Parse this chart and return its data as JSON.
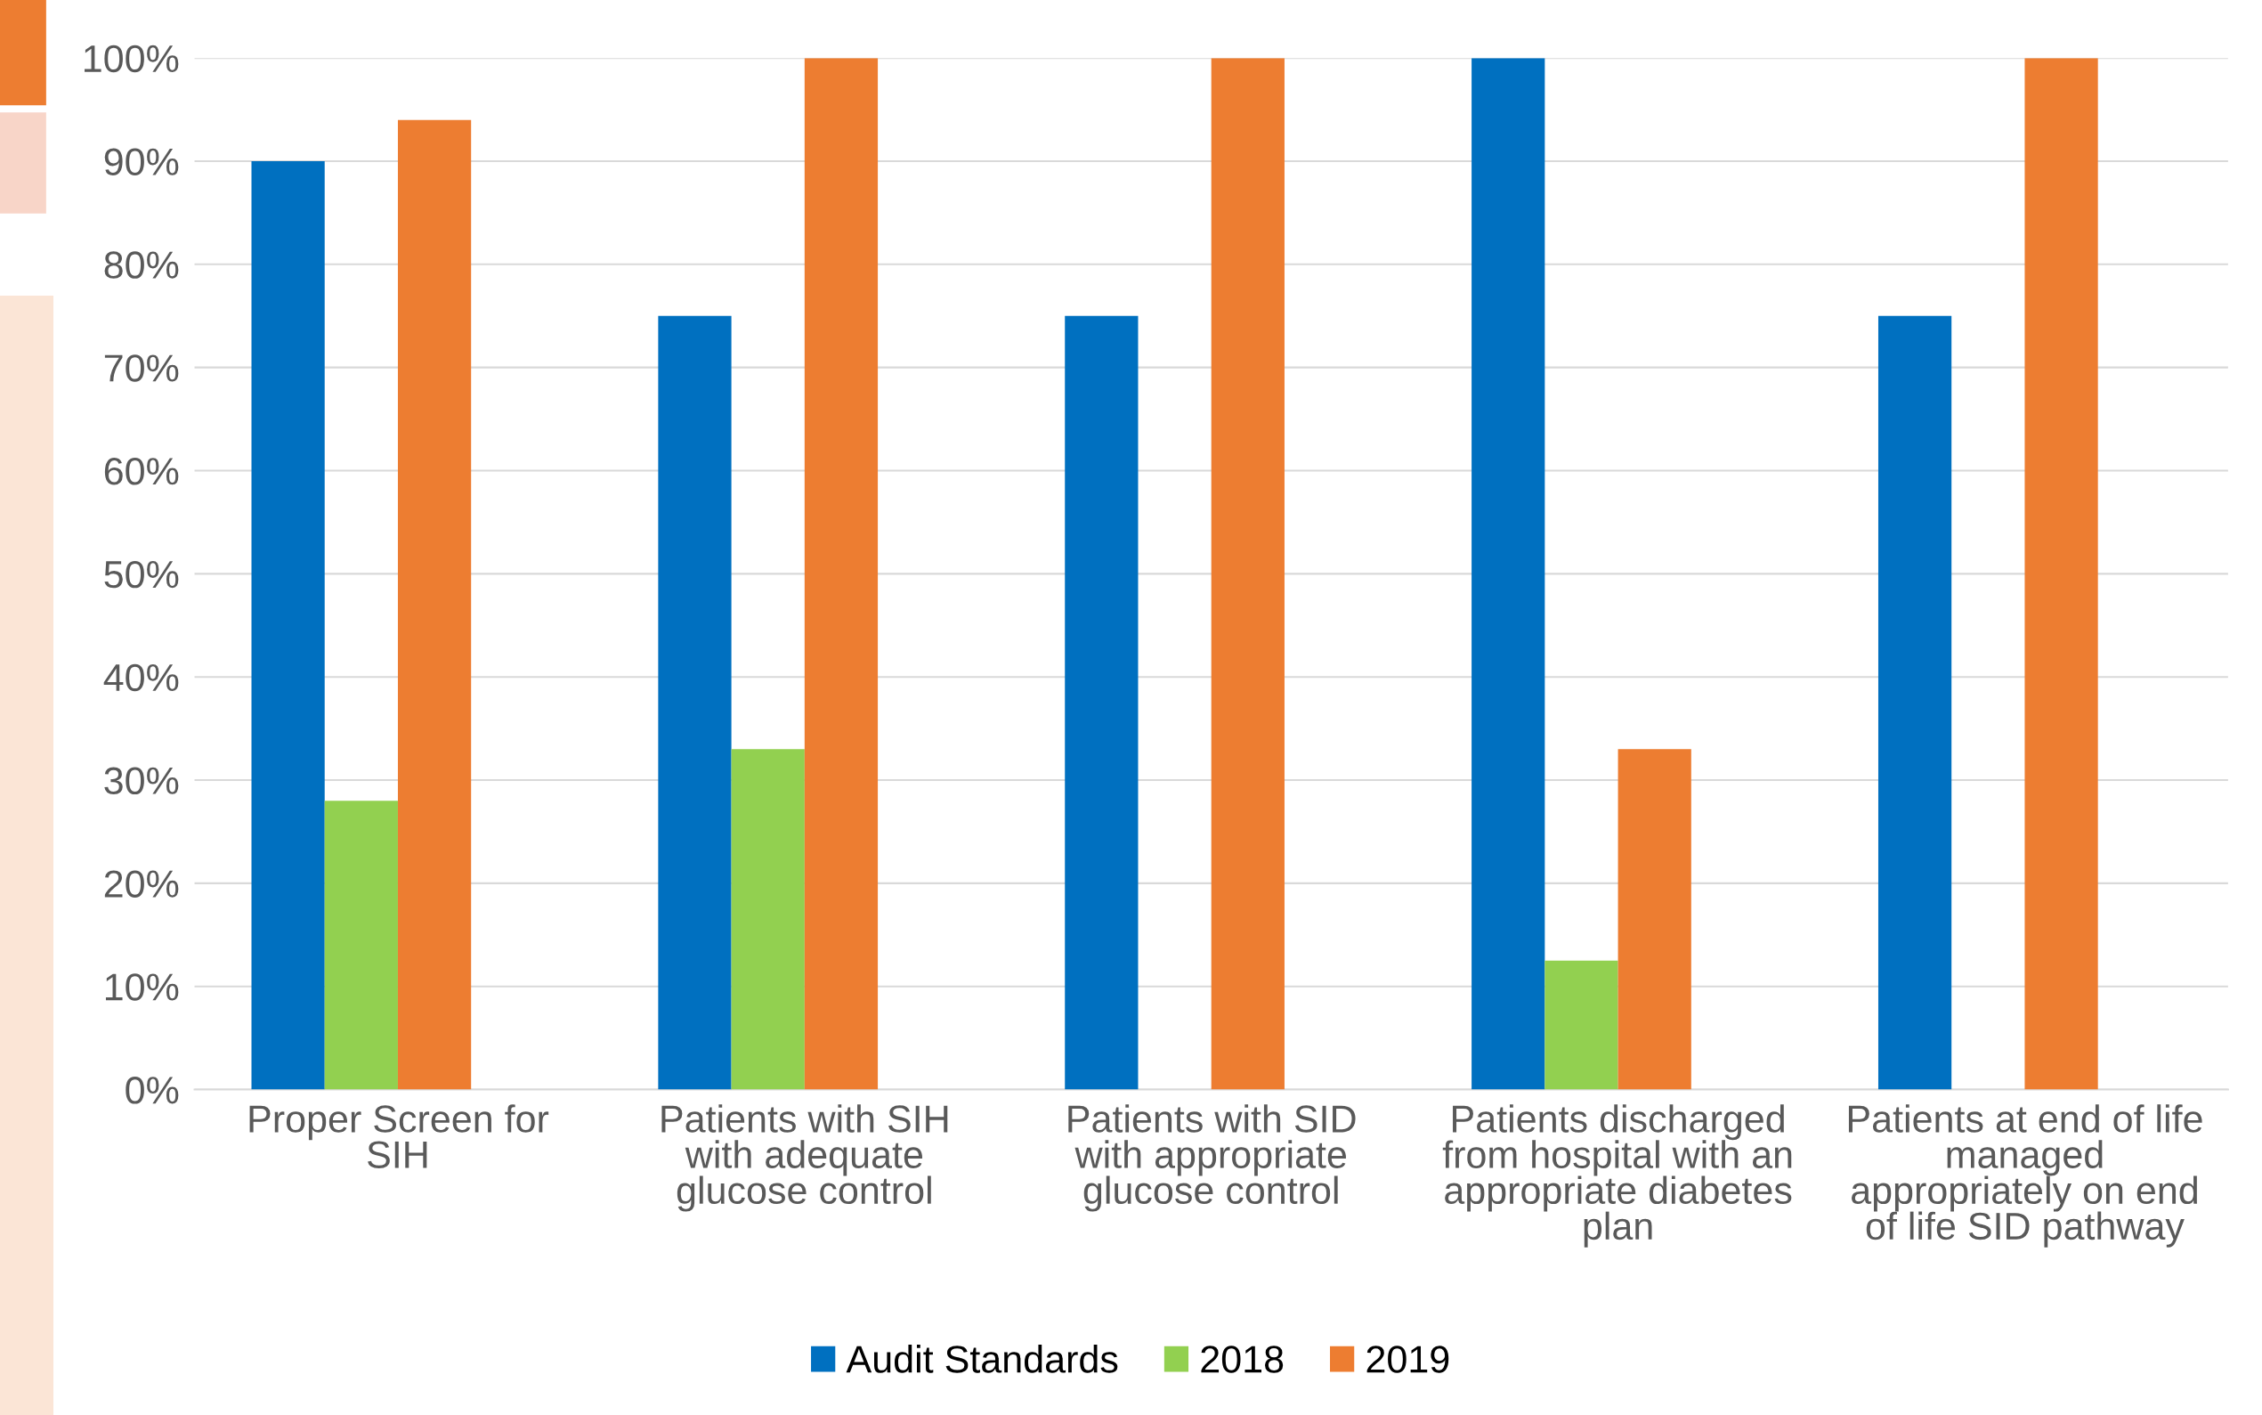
{
  "chart_data": {
    "type": "bar",
    "categories": [
      "Proper Screen for\nSIH",
      "Patients with SIH\nwith adequate\nglucose control",
      "Patients with SID\nwith appropriate\nglucose control",
      "Patients discharged\nfrom hospital with an\nappropriate diabetes\nplan",
      "Patients at end of life\nmanaged\nappropriately on end\nof life SID pathway"
    ],
    "series": [
      {
        "name": "Audit Standards",
        "color": "#0070c0",
        "values": [
          90,
          75,
          75,
          100,
          75
        ]
      },
      {
        "name": "2018",
        "color": "#92d050",
        "values": [
          28,
          33,
          null,
          12.5,
          null
        ]
      },
      {
        "name": "2019",
        "color": "#ed7d31",
        "values": [
          94,
          100,
          100,
          33,
          100
        ]
      }
    ],
    "ylim": [
      0,
      100
    ],
    "yticks": [
      {
        "value": 0,
        "label": "0%"
      },
      {
        "value": 10,
        "label": "10%"
      },
      {
        "value": 20,
        "label": "20%"
      },
      {
        "value": 30,
        "label": "30%"
      },
      {
        "value": 40,
        "label": "40%"
      },
      {
        "value": 50,
        "label": "50%"
      },
      {
        "value": 60,
        "label": "60%"
      },
      {
        "value": 70,
        "label": "70%"
      },
      {
        "value": 80,
        "label": "80%"
      },
      {
        "value": 90,
        "label": "90%"
      },
      {
        "value": 100,
        "label": "100%"
      }
    ],
    "grid": "y",
    "legend": "bottom"
  }
}
